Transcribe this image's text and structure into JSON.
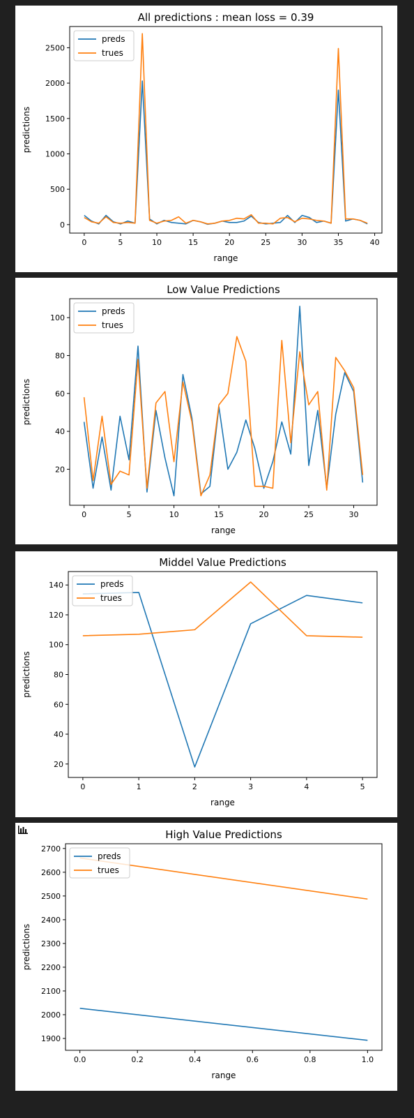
{
  "colors": {
    "preds": "#1f77b4",
    "trues": "#ff7f0e"
  },
  "chart_data": [
    {
      "type": "line",
      "title": "All predictions : mean loss = 0.39",
      "xlabel": "range",
      "ylabel": "predictions",
      "xlim": [
        -2,
        41
      ],
      "ylim": [
        -120,
        2800
      ],
      "xticks": [
        0,
        5,
        10,
        15,
        20,
        25,
        30,
        35,
        40
      ],
      "yticks": [
        0,
        500,
        1000,
        1500,
        2000,
        2500
      ],
      "legend": "top-left",
      "series": [
        {
          "name": "preds",
          "color": "#1f77b4",
          "x": [
            0,
            1,
            2,
            3,
            4,
            5,
            6,
            7,
            8,
            9,
            10,
            11,
            12,
            13,
            14,
            15,
            16,
            17,
            18,
            19,
            20,
            21,
            22,
            23,
            24,
            25,
            26,
            27,
            28,
            29,
            30,
            31,
            32,
            33,
            34,
            35,
            36,
            37,
            38,
            39
          ],
          "y": [
            130,
            50,
            10,
            130,
            40,
            10,
            50,
            20,
            2030,
            80,
            10,
            60,
            30,
            20,
            10,
            60,
            40,
            5,
            20,
            50,
            30,
            30,
            50,
            120,
            30,
            10,
            20,
            30,
            130,
            30,
            130,
            100,
            30,
            50,
            20,
            1900,
            50,
            80,
            60,
            10
          ]
        },
        {
          "name": "trues",
          "color": "#ff7f0e",
          "x": [
            0,
            1,
            2,
            3,
            4,
            5,
            6,
            7,
            8,
            9,
            10,
            11,
            12,
            13,
            14,
            15,
            16,
            17,
            18,
            19,
            20,
            21,
            22,
            23,
            24,
            25,
            26,
            27,
            28,
            29,
            30,
            31,
            32,
            33,
            34,
            35,
            36,
            37,
            38,
            39
          ],
          "y": [
            100,
            40,
            20,
            110,
            30,
            20,
            30,
            20,
            2700,
            60,
            20,
            50,
            60,
            110,
            20,
            60,
            40,
            10,
            20,
            50,
            60,
            90,
            80,
            140,
            20,
            20,
            10,
            90,
            100,
            40,
            90,
            80,
            60,
            50,
            20,
            2490,
            80,
            80,
            60,
            20
          ]
        }
      ]
    },
    {
      "type": "line",
      "title": "Low Value Predictions",
      "xlabel": "range",
      "ylabel": "predictions",
      "xlim": [
        -1.6,
        32.6
      ],
      "ylim": [
        1,
        110
      ],
      "xticks": [
        0,
        5,
        10,
        15,
        20,
        25,
        30
      ],
      "yticks": [
        20,
        40,
        60,
        80,
        100
      ],
      "legend": "top-left",
      "series": [
        {
          "name": "preds",
          "color": "#1f77b4",
          "x": [
            0,
            1,
            2,
            3,
            4,
            5,
            6,
            7,
            8,
            9,
            10,
            11,
            12,
            13,
            14,
            15,
            16,
            17,
            18,
            19,
            20,
            21,
            22,
            23,
            24,
            25,
            26,
            27,
            28,
            29,
            30,
            31
          ],
          "y": [
            45,
            10,
            37,
            9,
            48,
            25,
            85,
            8,
            51,
            26,
            6,
            70,
            47,
            7,
            11,
            53,
            20,
            29,
            46,
            31,
            10,
            24,
            45,
            28,
            106,
            22,
            51,
            10,
            49,
            71,
            61,
            13
          ]
        },
        {
          "name": "trues",
          "color": "#ff7f0e",
          "x": [
            0,
            1,
            2,
            3,
            4,
            5,
            6,
            7,
            8,
            9,
            10,
            11,
            12,
            13,
            14,
            15,
            16,
            17,
            18,
            19,
            20,
            21,
            22,
            23,
            24,
            25,
            26,
            27,
            28,
            29,
            30,
            31
          ],
          "y": [
            58,
            14,
            48,
            12,
            19,
            17,
            78,
            10,
            55,
            61,
            24,
            66,
            45,
            6,
            17,
            54,
            60,
            90,
            77,
            11,
            11,
            10,
            88,
            34,
            82,
            54,
            61,
            9,
            79,
            72,
            63,
            17
          ]
        }
      ]
    },
    {
      "type": "line",
      "title": "Middel Value Predictions",
      "xlabel": "range",
      "ylabel": "predictions",
      "xlim": [
        -0.26,
        5.26
      ],
      "ylim": [
        11,
        149
      ],
      "xticks": [
        0,
        1,
        2,
        3,
        4,
        5
      ],
      "yticks": [
        20,
        40,
        60,
        80,
        100,
        120,
        140
      ],
      "legend": "top-left",
      "series": [
        {
          "name": "preds",
          "color": "#1f77b4",
          "x": [
            0,
            1,
            2,
            3,
            4,
            5
          ],
          "y": [
            134,
            135,
            18,
            114,
            133,
            128
          ]
        },
        {
          "name": "trues",
          "color": "#ff7f0e",
          "x": [
            0,
            1,
            2,
            3,
            4,
            5
          ],
          "y": [
            106,
            107,
            110,
            142,
            106,
            105
          ]
        }
      ]
    },
    {
      "type": "line",
      "title": "High Value Predictions",
      "xlabel": "range",
      "ylabel": "predictions",
      "xlim": [
        -0.05,
        1.05
      ],
      "ylim": [
        1850,
        2720
      ],
      "xticks": [
        0.0,
        0.2,
        0.4,
        0.6,
        0.8,
        1.0
      ],
      "xtick_labels": [
        "0.0",
        "0.2",
        "0.4",
        "0.6",
        "0.8",
        "1.0"
      ],
      "yticks": [
        1900,
        2000,
        2100,
        2200,
        2300,
        2400,
        2500,
        2600,
        2700
      ],
      "legend": "top-left",
      "series": [
        {
          "name": "preds",
          "color": "#1f77b4",
          "x": [
            0,
            1
          ],
          "y": [
            2027,
            1892
          ]
        },
        {
          "name": "trues",
          "color": "#ff7f0e",
          "x": [
            0,
            1
          ],
          "y": [
            2660,
            2487
          ]
        }
      ]
    }
  ]
}
